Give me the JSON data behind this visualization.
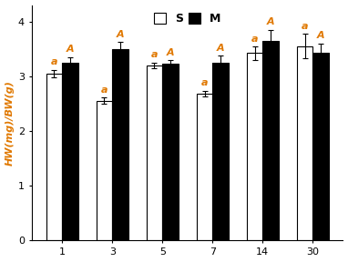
{
  "days": [
    1,
    3,
    5,
    7,
    14,
    30
  ],
  "S_values": [
    3.05,
    2.55,
    3.2,
    2.68,
    3.42,
    3.55
  ],
  "M_values": [
    3.25,
    3.5,
    3.22,
    3.25,
    3.65,
    3.42
  ],
  "S_errors": [
    0.07,
    0.06,
    0.05,
    0.05,
    0.12,
    0.22
  ],
  "M_errors": [
    0.1,
    0.12,
    0.07,
    0.12,
    0.2,
    0.18
  ],
  "S_labels": [
    "a",
    "a",
    "a",
    "a",
    "a",
    "a"
  ],
  "M_labels": [
    "A",
    "A",
    "A",
    "A",
    "A",
    "A"
  ],
  "ylabel": "HW(mg)/BW(g)",
  "ylim": [
    0,
    4.3
  ],
  "yticks": [
    0,
    1,
    2,
    3,
    4
  ],
  "bar_width": 0.32,
  "S_color": "white",
  "M_color": "black",
  "S_edgecolor": "black",
  "M_edgecolor": "black",
  "legend_labels": [
    "S",
    "M"
  ],
  "annotation_color": "#E07800",
  "ylabel_color": "#E07800",
  "annotation_fontsize": 8,
  "label_fontsize": 8,
  "tick_fontsize": 8,
  "legend_fontsize": 9
}
